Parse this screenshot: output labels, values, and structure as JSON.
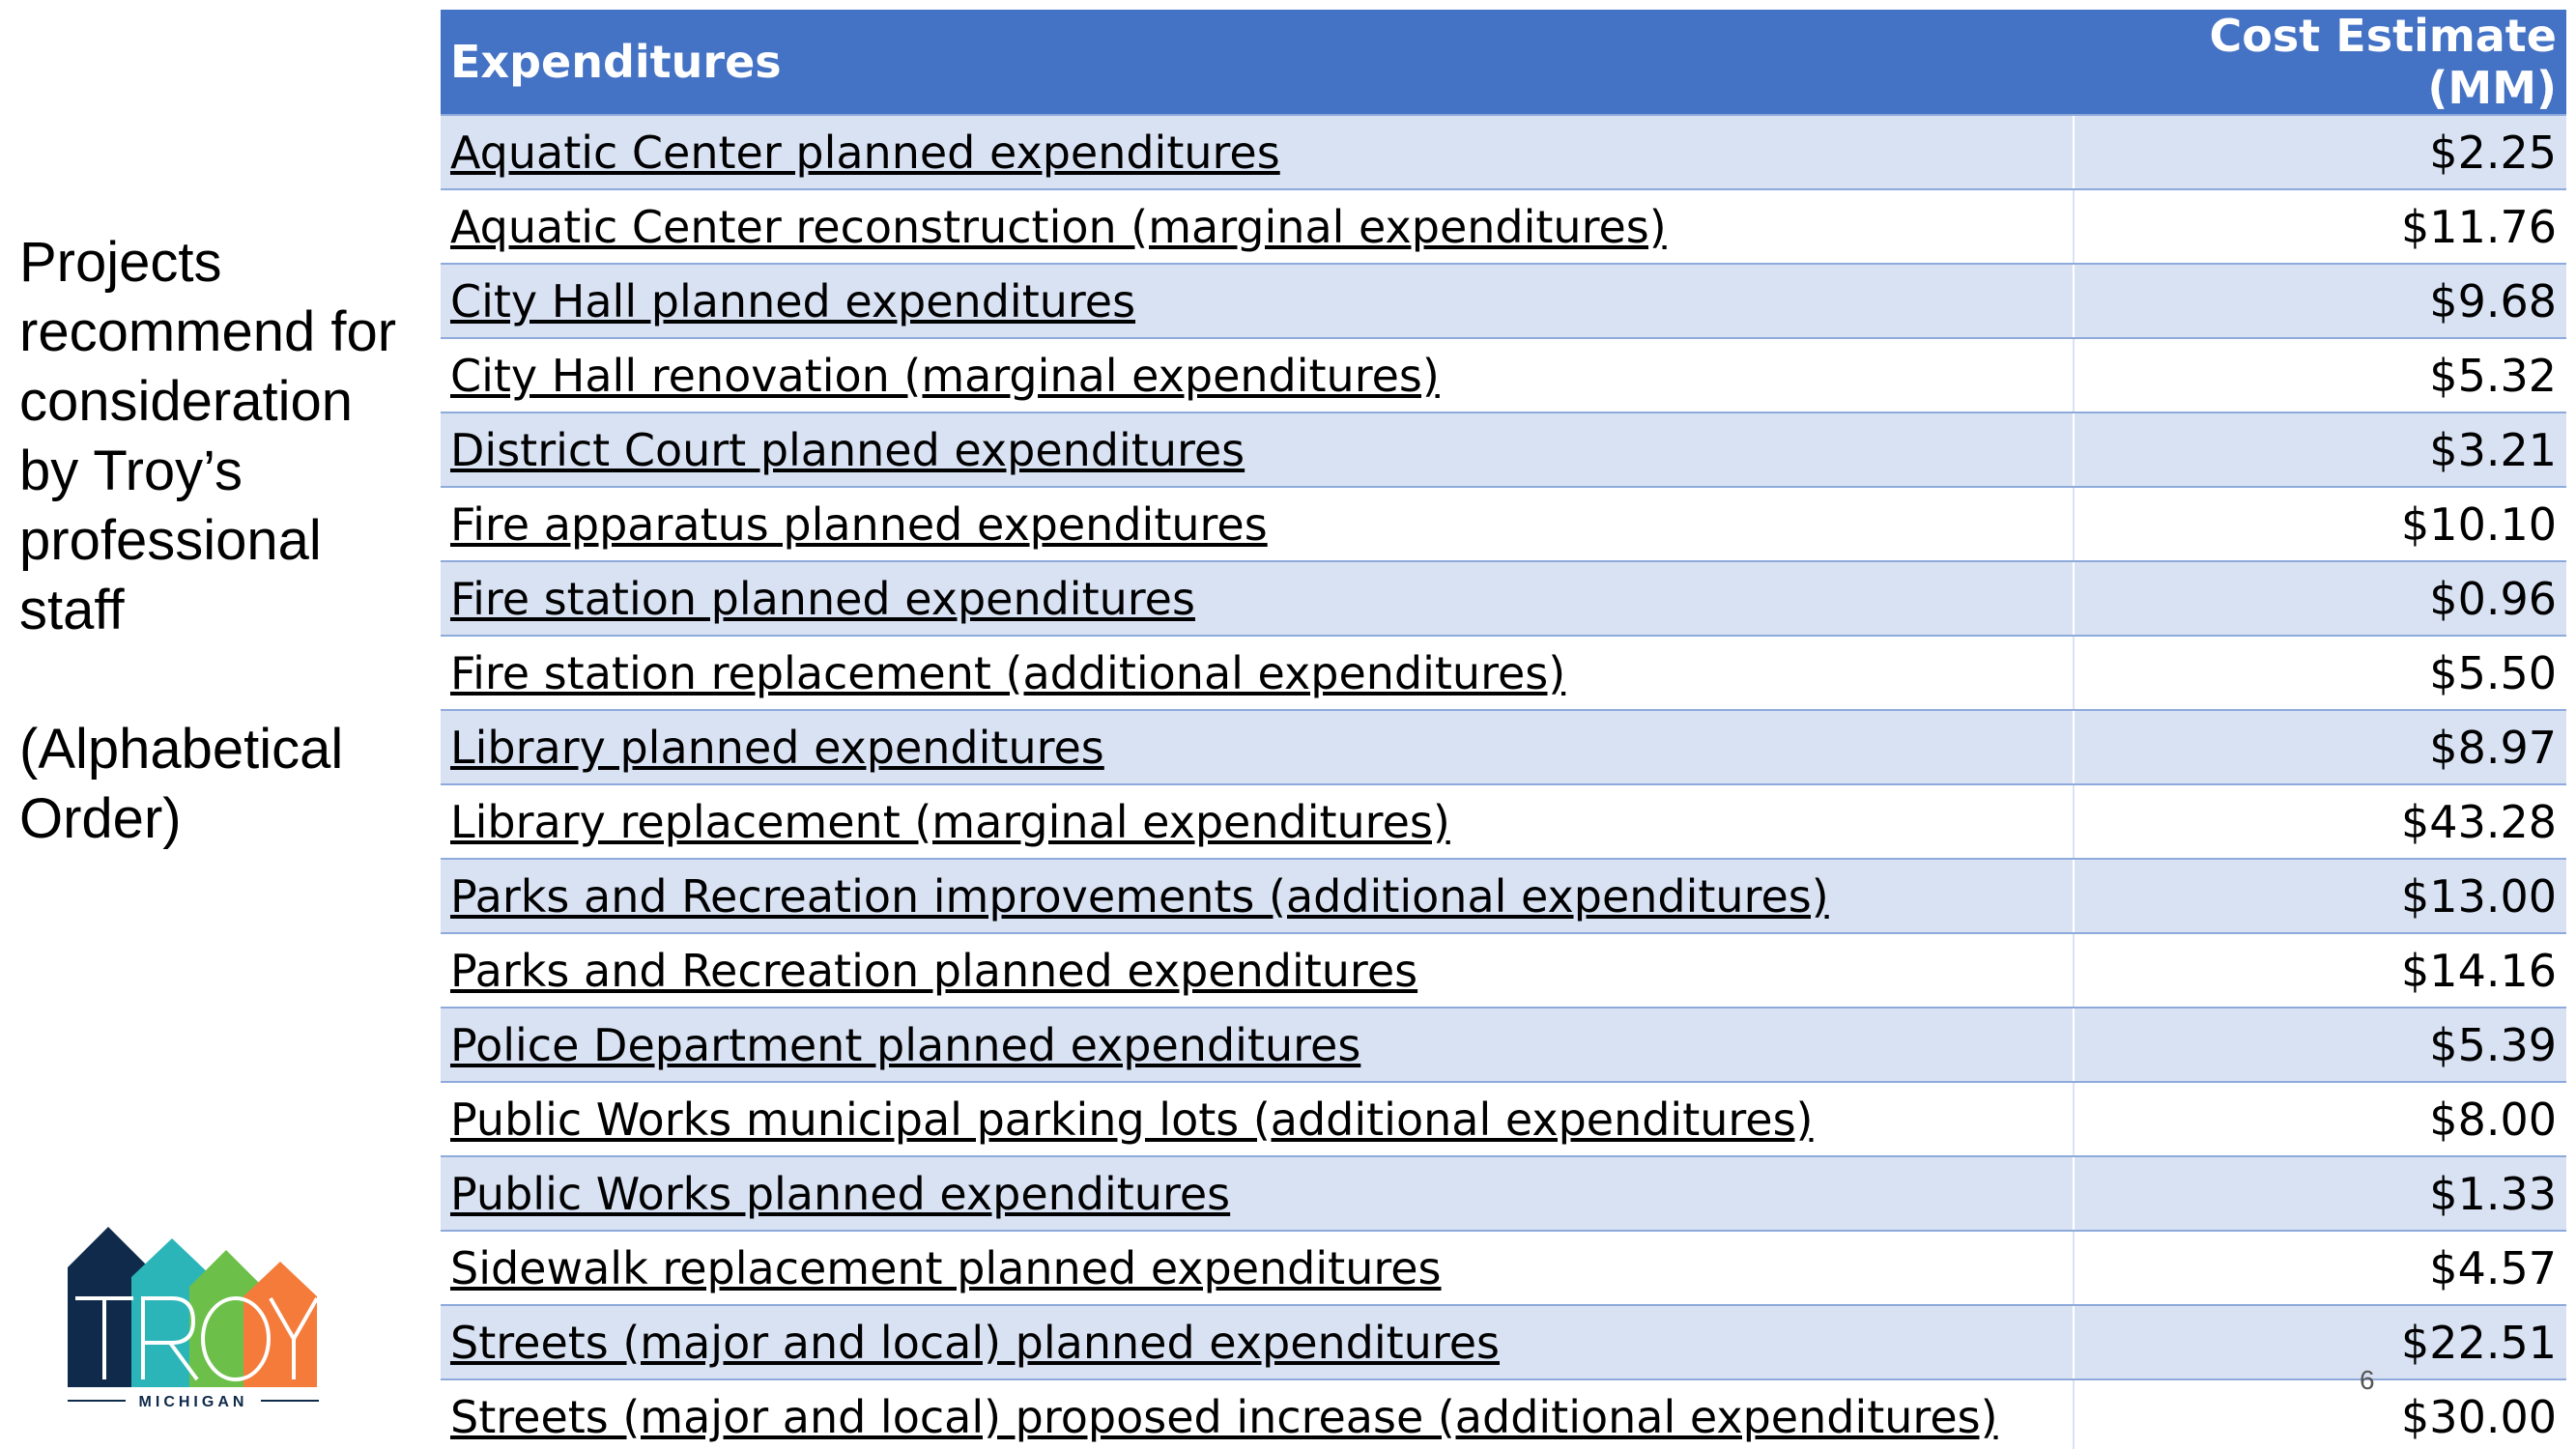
{
  "sidebar": {
    "lines": [
      "Projects",
      "recommend for",
      "consideration",
      "by Troy’s",
      "professional",
      "staff"
    ],
    "note_lines": [
      "(Alphabetical",
      "Order)"
    ]
  },
  "table": {
    "headers": {
      "expenditures": "Expenditures",
      "cost": "Cost Estimate (MM)"
    },
    "rows": [
      {
        "name": "Aquatic Center planned expenditures",
        "cost": "$2.25"
      },
      {
        "name": "Aquatic Center reconstruction (marginal expenditures)",
        "cost": "$11.76"
      },
      {
        "name": "City Hall planned expenditures",
        "cost": "$9.68"
      },
      {
        "name": "City Hall renovation (marginal expenditures)",
        "cost": "$5.32"
      },
      {
        "name": "District Court planned expenditures",
        "cost": "$3.21"
      },
      {
        "name": "Fire apparatus planned expenditures",
        "cost": "$10.10"
      },
      {
        "name": "Fire station planned expenditures",
        "cost": "$0.96"
      },
      {
        "name": "Fire station replacement (additional expenditures)",
        "cost": "$5.50"
      },
      {
        "name": "Library planned expenditures",
        "cost": "$8.97"
      },
      {
        "name": "Library replacement (marginal expenditures)",
        "cost": "$43.28"
      },
      {
        "name": "Parks and Recreation improvements (additional expenditures)",
        "cost": "$13.00"
      },
      {
        "name": "Parks and Recreation planned expenditures",
        "cost": "$14.16"
      },
      {
        "name": "Police Department planned expenditures",
        "cost": "$5.39"
      },
      {
        "name": "Public Works municipal parking lots (additional expenditures)",
        "cost": "$8.00"
      },
      {
        "name": "Public Works planned expenditures",
        "cost": "$1.33"
      },
      {
        "name": "Sidewalk replacement planned expenditures",
        "cost": "$4.57"
      },
      {
        "name": "Streets (major and local) planned expenditures",
        "cost": "$22.51"
      },
      {
        "name": "Streets (major and local) proposed increase (additional expenditures)",
        "cost": "$30.00"
      }
    ]
  },
  "page_number": "6",
  "logo": {
    "wordmark": "TROY",
    "subtitle": "MICHIGAN",
    "colors": {
      "navy": "#0f2a4a",
      "teal": "#2bb5b8",
      "green": "#6cc04a",
      "orange": "#f47b3a"
    }
  },
  "colors": {
    "header_bg": "#4472c4",
    "band_bg": "#d9e2f3",
    "border": "#8eaadb"
  }
}
